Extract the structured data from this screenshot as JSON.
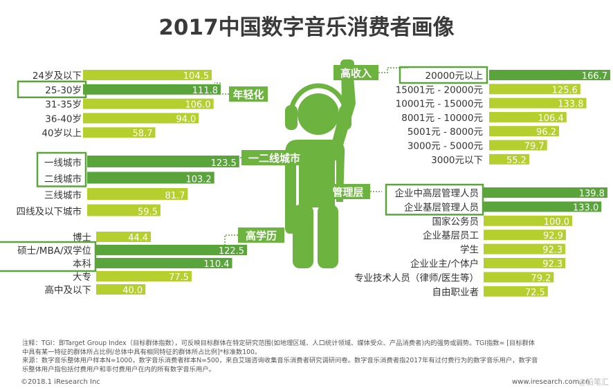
{
  "title": "2017中国数字音乐消费者画像",
  "chart_data": {
    "type": "bar",
    "title": "2017中国数字音乐消费者画像",
    "groups": [
      {
        "name": "年轻化",
        "side": "left",
        "categories": [
          "24岁及以下",
          "25-30岁",
          "31-35岁",
          "36-40岁",
          "40岁以上"
        ],
        "values": [
          104.5,
          111.8,
          106.0,
          94.0,
          58.7
        ],
        "labels": [
          "104.5",
          "111.8",
          "106.0",
          "94.0",
          "58.7"
        ],
        "highlight": [
          1
        ]
      },
      {
        "name": "一二线城市",
        "side": "left",
        "categories": [
          "一线城市",
          "二线城市",
          "三线城市",
          "四线及以下城市"
        ],
        "values": [
          123.5,
          103.2,
          81.7,
          59.5
        ],
        "labels": [
          "123.5",
          "103.2",
          "81.7",
          "59.5"
        ],
        "highlight": [
          0,
          1
        ]
      },
      {
        "name": "高学历",
        "side": "left",
        "categories": [
          "博士",
          "硕士/MBA/双学位",
          "本科",
          "大专",
          "高中及以下"
        ],
        "values": [
          44.4,
          122.5,
          110.4,
          77.5,
          40.0
        ],
        "labels": [
          "44.4",
          "122.5",
          "110.4",
          "77.5",
          "40.0"
        ],
        "highlight": [
          1,
          2
        ]
      },
      {
        "name": "高收入",
        "side": "right",
        "categories": [
          "20000元以上",
          "15001元 - 20000元",
          "10001元 - 15000元",
          "8001元 - 10000元",
          "5001元 - 8000元",
          "3000元 - 5000元",
          "3000元以下"
        ],
        "values": [
          166.7,
          125.6,
          133.8,
          106.4,
          96.2,
          79.7,
          55.2
        ],
        "labels": [
          "166.7",
          "125.6",
          "133.8",
          "106.4",
          "96.2",
          "79.7",
          "55.2"
        ],
        "highlight": [
          0
        ]
      },
      {
        "name": "管理层",
        "side": "right",
        "categories": [
          "企业中高层管理人员",
          "企业基层管理人员",
          "国家公务员",
          "企业基层员工",
          "学生",
          "企业业主/个体户",
          "专业技术人员（律师/医生等）",
          "自由职业者"
        ],
        "values": [
          139.8,
          133.0,
          100.0,
          92.9,
          92.3,
          92.3,
          79.2,
          72.5
        ],
        "labels": [
          "139.8",
          "133.0",
          "100.0",
          "92.9",
          "92.3",
          "92.3",
          "79.2",
          "72.5"
        ],
        "highlight": [
          0,
          1
        ]
      }
    ],
    "colors": {
      "bar": "#b5cf2f",
      "bar_highlight": "#5aa43c",
      "tag_bg": "#6db33f",
      "figure": "#6db33f",
      "box": "#5aa43c"
    }
  },
  "footer": {
    "note_lines": [
      "注释：TGI：即Target Group Index（目标群体指数），可反映目标群体在特定研究范围(如地理区域、人口统计领域、媒体受众、产品消费者)内的强势或弱势。TGI指数= [目标群体",
      "中具有某一特征的群体所占比例/总体中具有相同特征的群体所占比例]*标准数100。",
      "来源：数字音乐整体用户样本N=1000，数字音乐消费者样本N=500，来自艾瑞咨询收集音乐消费者研究调研问卷。数字音乐消费者指2017年有过付费行为的数字音乐用户，数字音",
      "乐整体用户指包括付费用户和非付费用户在内的所有数字音乐用户。"
    ],
    "copyright": "©2018.1 iResearch Inc",
    "website": "www.iresearch.com.cn",
    "watermark": "@铅笔汇"
  }
}
